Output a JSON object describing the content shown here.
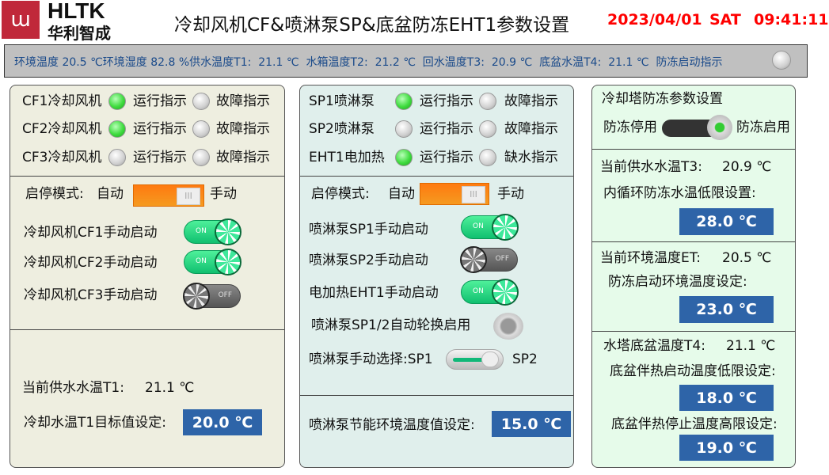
{
  "header": {
    "logo_text": "HLTK",
    "logo_sub": "华利智成",
    "title": "冷却风机CF&喷淋泵SP&底盆防冻EHT1参数设置",
    "date": "2023/04/01",
    "weekday": "SAT",
    "time": "09:41:11"
  },
  "status": {
    "text": "环境温度 20.5 ℃环境湿度 82.8 %供水温度T1:  21.1 ℃  水箱温度T2:  21.2 ℃  回水温度T3:  20.9 ℃  底盆水温T4:  21.1 ℃  防冻启动指示",
    "antifreeze_indicator": "off"
  },
  "left": {
    "rows": [
      {
        "name": "CF1冷却风机",
        "run": "运行指示",
        "fault": "故障指示",
        "run_on": true
      },
      {
        "name": "CF2冷却风机",
        "run": "运行指示",
        "fault": "故障指示",
        "run_on": true
      },
      {
        "name": "CF3冷却风机",
        "run": "运行指示",
        "fault": "故障指示",
        "run_on": false
      }
    ],
    "mode_label": "启停模式:",
    "auto": "自动",
    "manual": "手动",
    "mode_knob": "III",
    "manual_items": [
      {
        "label": "冷却风机CF1手动启动",
        "state": "ON"
      },
      {
        "label": "冷却风机CF2手动启动",
        "state": "ON"
      },
      {
        "label": "冷却风机CF3手动启动",
        "state": "OFF"
      }
    ],
    "t1_label": "当前供水水温T1:",
    "t1_value": "21.1 ℃",
    "target_label": "冷却水温T1目标值设定:",
    "target_value": "20.0 ℃"
  },
  "middle": {
    "rows": [
      {
        "name": "SP1喷淋泵",
        "run": "运行指示",
        "fault": "故障指示",
        "run_on": true
      },
      {
        "name": "SP2喷淋泵",
        "run": "运行指示",
        "fault": "故障指示",
        "run_on": false
      },
      {
        "name": "EHT1电加热",
        "run": "运行指示",
        "fault": "缺水指示",
        "run_on": true
      }
    ],
    "mode_label": "启停模式:",
    "auto": "自动",
    "manual": "手动",
    "mode_knob": "III",
    "manual_items": [
      {
        "label": "喷淋泵SP1手动启动",
        "state": "ON"
      },
      {
        "label": "喷淋泵SP2手动启动",
        "state": "OFF"
      },
      {
        "label": "电加热EHT1手动启动",
        "state": "ON"
      }
    ],
    "rotate_label": "喷淋泵SP1/2自动轮换启用",
    "select_label": "喷淋泵手动选择:SP1",
    "select_sp2": "SP2",
    "energy_label": "喷淋泵节能环境温度值设定:",
    "energy_value": "15.0 ℃"
  },
  "right": {
    "title": "冷却塔防冻参数设置",
    "off_label": "防冻停用",
    "on_label": "防冻启用",
    "t3_label": "当前供水水温T3:",
    "t3_value": "20.9 ℃",
    "inner_label": "内循环防冻水温低限设置:",
    "inner_value": "28.0 ℃",
    "et_label": "当前环境温度ET:",
    "et_value": "20.5 ℃",
    "et_set_label": "防冻启动环境温度设定:",
    "et_set_value": "23.0 ℃",
    "t4_label": "水塔底盆温度T4:",
    "t4_value": "21.1 ℃",
    "heat_on_label": "底盆伴热启动温度低限设定:",
    "heat_on_value": "18.0 ℃",
    "heat_off_label": "底盆伴热停止温度高限设定:",
    "heat_off_value": "19.0 ℃"
  },
  "colors": {
    "date": "#ff0000",
    "box": "#2e64a8",
    "status_text": "#1a4a8a"
  }
}
